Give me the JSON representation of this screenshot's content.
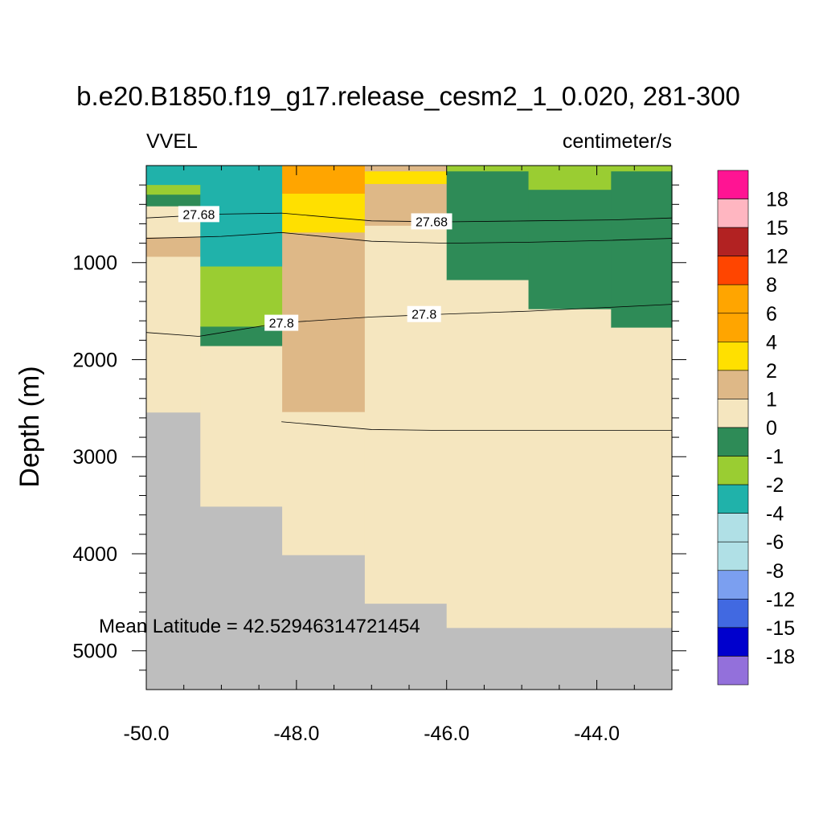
{
  "chart_data": {
    "type": "heatmap",
    "title": "b.e20.B1850.f19_g17.release_cesm2_1_0.020, 281-300",
    "variable": "VVEL",
    "units": "centimeter/s",
    "xlabel": "",
    "ylabel": "Depth (m)",
    "xlim": [
      -50.0,
      -43.0
    ],
    "ylim": [
      0,
      5400
    ],
    "y_inverted": true,
    "x_ticks": [
      "-50.0",
      "-48.0",
      "-46.0",
      "-44.0"
    ],
    "y_ticks": [
      "1000",
      "2000",
      "3000",
      "4000",
      "5000"
    ],
    "annotation": "Mean Latitude = 42.52946314721454",
    "missing_color": "#bebebe",
    "levels": [
      "18",
      "15",
      "12",
      "8",
      "6",
      "4",
      "2",
      "1",
      "0",
      "-1",
      "-2",
      "-4",
      "-6",
      "-8",
      "-12",
      "-15",
      "-18"
    ],
    "colors": [
      "#ff1493",
      "#ffb6c1",
      "#b22222",
      "#ff4500",
      "#ffa500",
      "#ffa500",
      "#ffe000",
      "#deb887",
      "#f5e6bf",
      "#2e8b57",
      "#9acd32",
      "#20b2aa",
      "#b0e0e6",
      "#b0e0e6",
      "#7b9ff0",
      "#4169e1",
      "#0000cd",
      "#9370db"
    ],
    "columns": [
      {
        "x0": -50.0,
        "x1": -49.28,
        "bottom": 2540,
        "cells": [
          {
            "d0": 0,
            "d1": 200,
            "value": -3.0
          },
          {
            "d0": 200,
            "d1": 300,
            "value": -1.5
          },
          {
            "d0": 300,
            "d1": 420,
            "value": -0.5
          },
          {
            "d0": 420,
            "d1": 740,
            "value": 0.5
          },
          {
            "d0": 740,
            "d1": 940,
            "value": 1.5
          },
          {
            "d0": 940,
            "d1": 2540,
            "value": 0.5
          }
        ]
      },
      {
        "x0": -49.28,
        "x1": -48.19,
        "bottom": 3510,
        "cells": [
          {
            "d0": 0,
            "d1": 1040,
            "value": -3.0
          },
          {
            "d0": 1040,
            "d1": 1660,
            "value": -1.5
          },
          {
            "d0": 1660,
            "d1": 1860,
            "value": -0.5
          },
          {
            "d0": 1860,
            "d1": 3510,
            "value": 0.5
          }
        ]
      },
      {
        "x0": -48.19,
        "x1": -47.09,
        "bottom": 4010,
        "cells": [
          {
            "d0": 0,
            "d1": 290,
            "value": 5.0
          },
          {
            "d0": 290,
            "d1": 690,
            "value": 3.0
          },
          {
            "d0": 690,
            "d1": 2540,
            "value": 1.5
          },
          {
            "d0": 2540,
            "d1": 4010,
            "value": 0.5
          }
        ]
      },
      {
        "x0": -47.09,
        "x1": -46.0,
        "bottom": 4510,
        "cells": [
          {
            "d0": 0,
            "d1": 60,
            "value": 1.5
          },
          {
            "d0": 60,
            "d1": 190,
            "value": 3.0
          },
          {
            "d0": 190,
            "d1": 620,
            "value": 1.5
          },
          {
            "d0": 620,
            "d1": 4510,
            "value": 0.5
          }
        ]
      },
      {
        "x0": -46.0,
        "x1": -44.91,
        "bottom": 4760,
        "cells": [
          {
            "d0": 0,
            "d1": 60,
            "value": -1.5
          },
          {
            "d0": 60,
            "d1": 1180,
            "value": -0.5
          },
          {
            "d0": 1180,
            "d1": 4760,
            "value": 0.5
          }
        ]
      },
      {
        "x0": -44.91,
        "x1": -43.81,
        "bottom": 4760,
        "cells": [
          {
            "d0": 0,
            "d1": 250,
            "value": -1.5
          },
          {
            "d0": 250,
            "d1": 1480,
            "value": -0.5
          },
          {
            "d0": 1480,
            "d1": 4760,
            "value": 0.5
          }
        ]
      },
      {
        "x0": -43.81,
        "x1": -43.0,
        "bottom": 4760,
        "cells": [
          {
            "d0": 0,
            "d1": 60,
            "value": -1.5
          },
          {
            "d0": 60,
            "d1": 1670,
            "value": -0.5
          },
          {
            "d0": 1670,
            "d1": 4760,
            "value": 0.5
          }
        ]
      }
    ],
    "contours": [
      {
        "label": "27.68",
        "points": [
          [
            -50.0,
            540
          ],
          [
            -49.0,
            500
          ],
          [
            -48.2,
            490
          ],
          [
            -47.0,
            570
          ],
          [
            -46.0,
            580
          ],
          [
            -44.9,
            570
          ],
          [
            -43.8,
            560
          ],
          [
            -43.0,
            540
          ]
        ]
      },
      {
        "label": "",
        "points": [
          [
            -50.0,
            750
          ],
          [
            -49.0,
            730
          ],
          [
            -48.2,
            690
          ],
          [
            -47.0,
            780
          ],
          [
            -46.0,
            800
          ],
          [
            -44.9,
            790
          ],
          [
            -43.8,
            770
          ],
          [
            -43.0,
            750
          ]
        ]
      },
      {
        "label": "27.8",
        "points": [
          [
            -50.0,
            1720
          ],
          [
            -49.3,
            1760
          ],
          [
            -48.2,
            1620
          ],
          [
            -47.0,
            1560
          ],
          [
            -46.0,
            1530
          ],
          [
            -44.9,
            1500
          ],
          [
            -43.8,
            1460
          ],
          [
            -43.0,
            1430
          ]
        ]
      },
      {
        "label": "",
        "points": [
          [
            -48.2,
            2640
          ],
          [
            -47.0,
            2720
          ],
          [
            -46.0,
            2730
          ],
          [
            -44.9,
            2730
          ],
          [
            -43.8,
            2730
          ],
          [
            -43.0,
            2730
          ]
        ]
      }
    ],
    "contour_labels": [
      {
        "text": "27.68",
        "x": -49.3,
        "y": 500
      },
      {
        "text": "27.68",
        "x": -46.2,
        "y": 575
      },
      {
        "text": "27.8",
        "x": -48.2,
        "y": 1620
      },
      {
        "text": "27.8",
        "x": -46.3,
        "y": 1530
      }
    ]
  }
}
